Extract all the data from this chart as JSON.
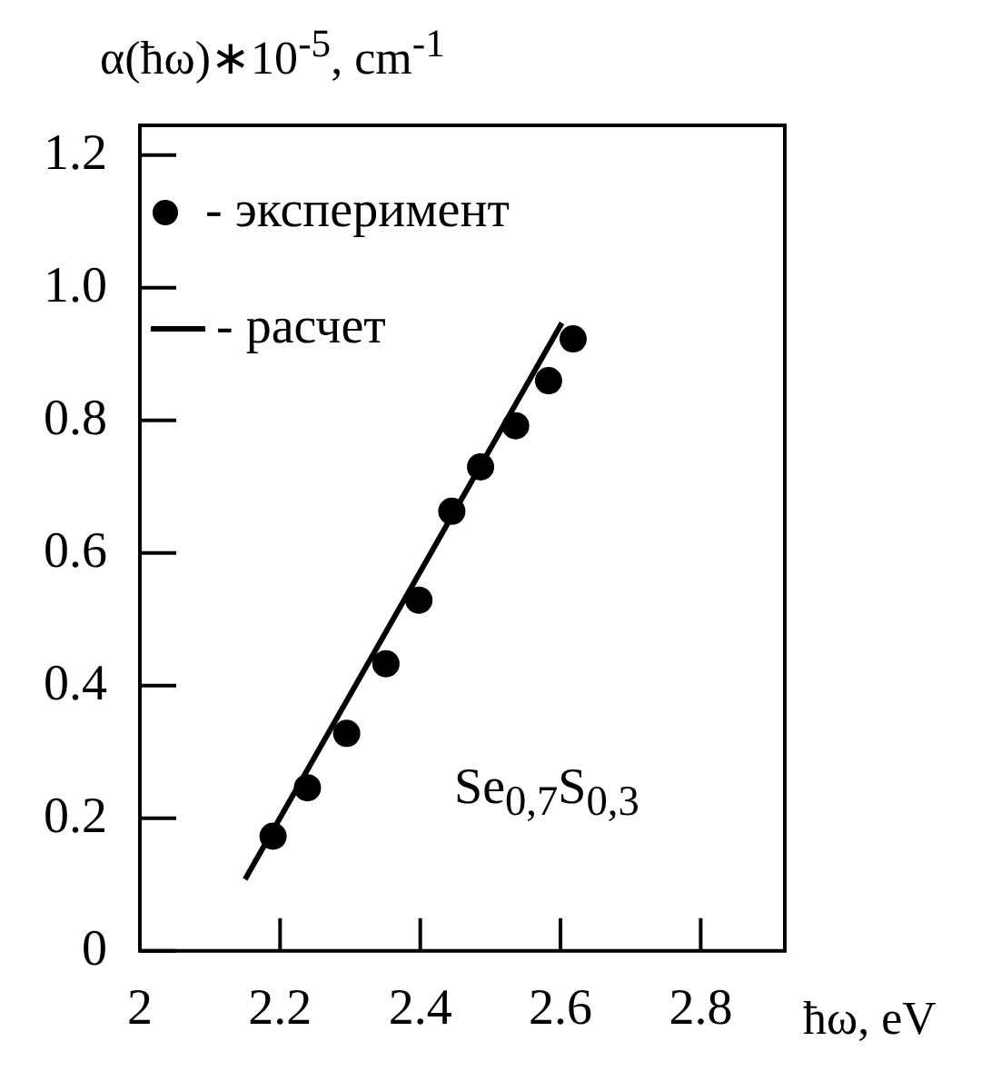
{
  "chart_data": {
    "type": "scatter",
    "xlabel": "ħω, eV",
    "ylabel": "α(ħω)∗10$^{-5}$, cm$^{-1}$",
    "xlim": [
      2,
      2.92
    ],
    "ylim": [
      0,
      1.245
    ],
    "xticks": [
      2,
      2.2,
      2.4,
      2.6,
      2.8
    ],
    "yticks": [
      0,
      0.2,
      0.4,
      0.6,
      0.8,
      {
        "value": 1,
        "label": "1.0"
      },
      1.2
    ],
    "series": [
      {
        "name": "- эксперимент",
        "type": "scatter",
        "color": "#000000",
        "marker": "circle",
        "x": [
          2.19,
          2.239,
          2.295,
          2.351,
          2.398,
          2.445,
          2.486,
          2.536,
          2.583,
          2.618
        ],
        "values": [
          0.173,
          0.246,
          0.328,
          0.433,
          0.529,
          0.663,
          0.73,
          0.792,
          0.86,
          0.923
        ]
      },
      {
        "name": "- расчет",
        "type": "line",
        "color": "#000000",
        "marker": "none",
        "line_style": "solid",
        "x": [
          2.15,
          2.602
        ],
        "values": [
          0.108,
          0.947
        ]
      }
    ],
    "annotations": [
      "Se$_{0,7}$S$_{0,3}$"
    ],
    "legend": "top left",
    "grid": false
  }
}
